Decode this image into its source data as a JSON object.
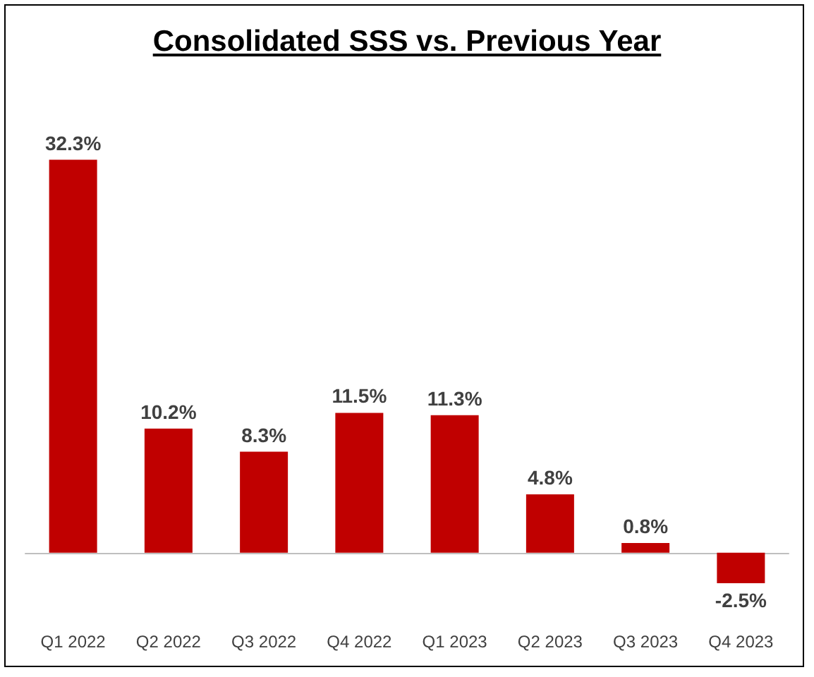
{
  "chart_data": {
    "type": "bar",
    "title": "Consolidated SSS vs. Previous Year",
    "categories": [
      "Q1 2022",
      "Q2 2022",
      "Q3 2022",
      "Q4 2022",
      "Q1 2023",
      "Q2 2023",
      "Q3 2023",
      "Q4 2023"
    ],
    "values": [
      32.3,
      10.2,
      8.3,
      11.5,
      11.3,
      4.8,
      0.8,
      -2.5
    ],
    "value_labels": [
      "32.3%",
      "10.2%",
      "8.3%",
      "11.5%",
      "11.3%",
      "4.8%",
      "0.8%",
      "-2.5%"
    ],
    "color": "#c00000"
  }
}
